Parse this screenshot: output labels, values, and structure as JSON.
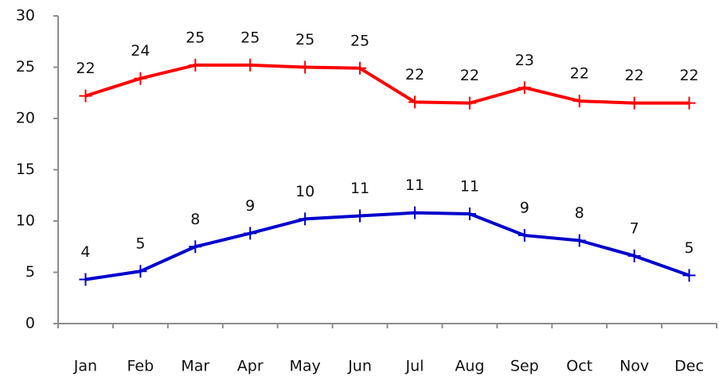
{
  "chart_data": {
    "type": "line",
    "categories": [
      "Jan",
      "Feb",
      "Mar",
      "Apr",
      "May",
      "Jun",
      "Jul",
      "Aug",
      "Sep",
      "Oct",
      "Nov",
      "Dec"
    ],
    "series": [
      {
        "color": "#ff0000",
        "values": [
          22.2,
          23.9,
          25.2,
          25.2,
          25.0,
          24.9,
          21.6,
          21.5,
          23.0,
          21.7,
          21.5,
          21.5
        ],
        "value_labels": [
          "22",
          "24",
          "25",
          "25",
          "25",
          "25",
          "22",
          "22",
          "23",
          "22",
          "22",
          "22"
        ]
      },
      {
        "color": "#0000cc",
        "values": [
          4.3,
          5.1,
          7.5,
          8.8,
          10.2,
          10.5,
          10.8,
          10.7,
          8.6,
          8.1,
          6.6,
          4.7
        ],
        "value_labels": [
          "4",
          "5",
          "8",
          "9",
          "10",
          "11",
          "11",
          "11",
          "9",
          "8",
          "7",
          "5"
        ]
      }
    ],
    "ylim": [
      0,
      30
    ],
    "yticks": [
      0,
      5,
      10,
      15,
      20,
      25,
      30
    ],
    "grid": false
  }
}
